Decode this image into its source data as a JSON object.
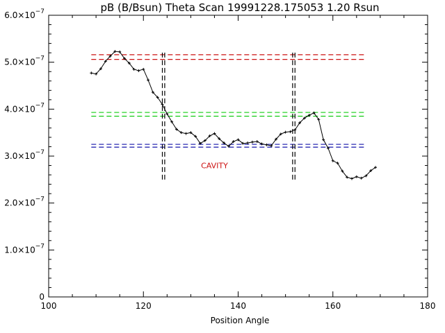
{
  "chart_data": {
    "type": "line",
    "title": "pB (B/Bsun) Theta Scan 19991228.175053 1.20 Rsun",
    "xlabel": "Position Angle",
    "ylabel": "",
    "xlim": [
      100,
      180
    ],
    "ylim": [
      0,
      6e-07
    ],
    "x_ticks": [
      100,
      120,
      140,
      160,
      180
    ],
    "x_tick_labels": [
      "100",
      "120",
      "140",
      "160",
      "180"
    ],
    "y_ticks": [
      0,
      1e-07,
      2e-07,
      3e-07,
      4e-07,
      5e-07,
      6e-07
    ],
    "y_tick_labels": [
      {
        "mantissa": "0",
        "exponent": ""
      },
      {
        "mantissa": "1.0×10",
        "exponent": "−7"
      },
      {
        "mantissa": "2.0×10",
        "exponent": "−7"
      },
      {
        "mantissa": "3.0×10",
        "exponent": "−7"
      },
      {
        "mantissa": "4.0×10",
        "exponent": "−7"
      },
      {
        "mantissa": "5.0×10",
        "exponent": "−7"
      },
      {
        "mantissa": "6.0×10",
        "exponent": "−7"
      }
    ],
    "grid": false,
    "series": [
      {
        "color": "#000000",
        "marker": "plus",
        "x": [
          109,
          110,
          111,
          112,
          113,
          114,
          115,
          116,
          117,
          118,
          119,
          120,
          121,
          122,
          123,
          124,
          125,
          126,
          127,
          128,
          129,
          130,
          131,
          132,
          133,
          134,
          135,
          136,
          137,
          138,
          139,
          140,
          141,
          142,
          143,
          144,
          145,
          146,
          147,
          148,
          149,
          150,
          151,
          152,
          153,
          154,
          155,
          156,
          157,
          158,
          159,
          160,
          161,
          162,
          163,
          164,
          165,
          166,
          167,
          168,
          169
        ],
        "y": [
          4.77e-07,
          4.75e-07,
          4.86e-07,
          5.02e-07,
          5.13e-07,
          5.23e-07,
          5.22e-07,
          5.08e-07,
          4.98e-07,
          4.85e-07,
          4.82e-07,
          4.85e-07,
          4.62e-07,
          4.36e-07,
          4.25e-07,
          4.1e-07,
          3.9e-07,
          3.73e-07,
          3.57e-07,
          3.5e-07,
          3.48e-07,
          3.5e-07,
          3.42e-07,
          3.27e-07,
          3.33e-07,
          3.43e-07,
          3.48e-07,
          3.37e-07,
          3.28e-07,
          3.21e-07,
          3.31e-07,
          3.35e-07,
          3.27e-07,
          3.28e-07,
          3.3e-07,
          3.31e-07,
          3.26e-07,
          3.24e-07,
          3.22e-07,
          3.36e-07,
          3.47e-07,
          3.51e-07,
          3.52e-07,
          3.56e-07,
          3.71e-07,
          3.81e-07,
          3.87e-07,
          3.92e-07,
          3.78e-07,
          3.35e-07,
          3.17e-07,
          2.9e-07,
          2.85e-07,
          2.68e-07,
          2.55e-07,
          2.52e-07,
          2.56e-07,
          2.53e-07,
          2.58e-07,
          2.69e-07,
          2.76e-07
        ]
      }
    ],
    "reference_lines": [
      {
        "color": "#cc1111",
        "y": 5.16e-07
      },
      {
        "color": "#cc1111",
        "y": 5.06e-07
      },
      {
        "color": "#11cc11",
        "y": 3.93e-07
      },
      {
        "color": "#11cc11",
        "y": 3.85e-07
      },
      {
        "color": "#1111aa",
        "y": 3.25e-07
      },
      {
        "color": "#1111aa",
        "y": 3.19e-07
      }
    ],
    "reference_line_x_range": [
      109,
      167
    ],
    "vertical_markers": [
      {
        "color": "#000000",
        "x": 124.0,
        "y_range": [
          2.5e-07,
          5.25e-07
        ]
      },
      {
        "color": "#000000",
        "x": 124.5,
        "y_range": [
          2.5e-07,
          5.25e-07
        ]
      },
      {
        "color": "#000000",
        "x": 151.5,
        "y_range": [
          2.5e-07,
          5.25e-07
        ]
      },
      {
        "color": "#000000",
        "x": 152.0,
        "y_range": [
          2.5e-07,
          5.25e-07
        ]
      }
    ],
    "annotations": [
      {
        "text": "CAVITY",
        "x": 135,
        "y": 2.8e-07,
        "color": "#cc1111"
      }
    ]
  }
}
